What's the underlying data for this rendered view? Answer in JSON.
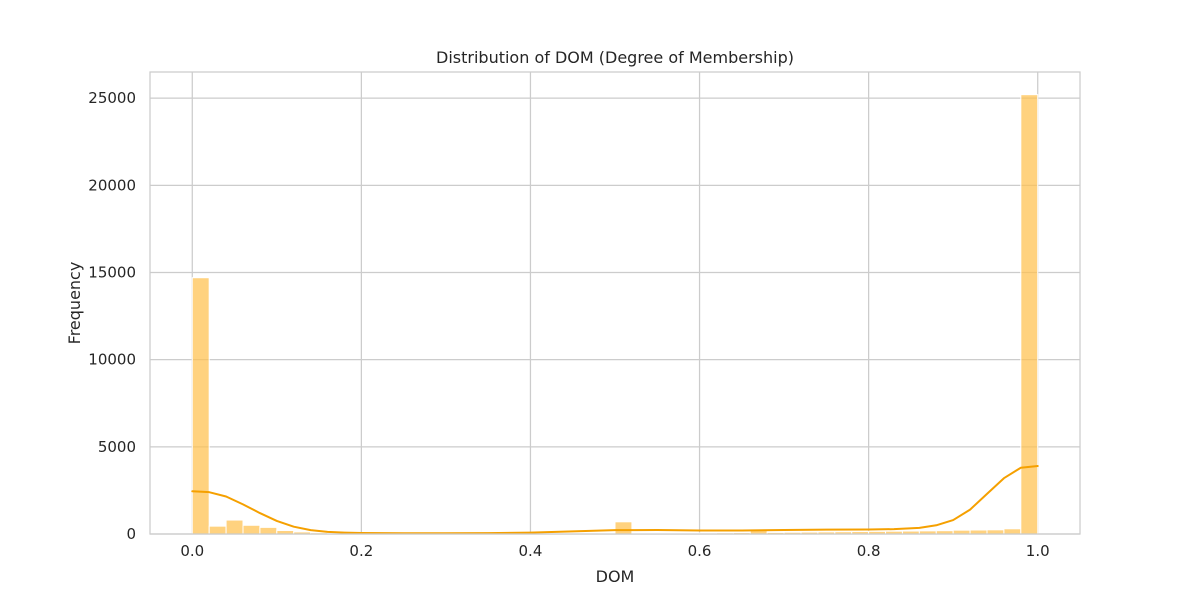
{
  "chart_data": {
    "type": "bar",
    "title": "Distribution of DOM (Degree of Membership)",
    "xlabel": "DOM",
    "ylabel": "Frequency",
    "xlim": [
      -0.05,
      1.05
    ],
    "ylim": [
      0,
      26500
    ],
    "xticks": [
      0.0,
      0.2,
      0.4,
      0.6,
      0.8,
      1.0
    ],
    "xtick_labels": [
      "0.0",
      "0.2",
      "0.4",
      "0.6",
      "0.8",
      "1.0"
    ],
    "yticks": [
      0,
      5000,
      10000,
      15000,
      20000,
      25000
    ],
    "ytick_labels": [
      "0",
      "5000",
      "10000",
      "15000",
      "20000",
      "25000"
    ],
    "grid": true,
    "bin_width": 0.02,
    "bins_start": [
      0.0,
      0.02,
      0.04,
      0.06,
      0.08,
      0.1,
      0.12,
      0.14,
      0.16,
      0.18,
      0.2,
      0.22,
      0.24,
      0.26,
      0.28,
      0.3,
      0.32,
      0.34,
      0.36,
      0.38,
      0.4,
      0.42,
      0.44,
      0.46,
      0.48,
      0.5,
      0.52,
      0.54,
      0.56,
      0.58,
      0.6,
      0.62,
      0.64,
      0.66,
      0.68,
      0.7,
      0.72,
      0.74,
      0.76,
      0.78,
      0.8,
      0.82,
      0.84,
      0.86,
      0.88,
      0.9,
      0.92,
      0.94,
      0.96,
      0.98
    ],
    "values": [
      14700,
      450,
      800,
      500,
      380,
      200,
      120,
      70,
      40,
      30,
      20,
      15,
      15,
      15,
      15,
      15,
      15,
      15,
      15,
      15,
      20,
      20,
      20,
      20,
      25,
      700,
      40,
      40,
      40,
      40,
      60,
      70,
      80,
      220,
      90,
      100,
      110,
      120,
      130,
      140,
      150,
      160,
      170,
      180,
      190,
      220,
      230,
      240,
      300,
      25200
    ],
    "kde": {
      "x": [
        0.0,
        0.02,
        0.04,
        0.06,
        0.08,
        0.1,
        0.12,
        0.14,
        0.16,
        0.18,
        0.2,
        0.25,
        0.3,
        0.35,
        0.4,
        0.45,
        0.5,
        0.55,
        0.6,
        0.65,
        0.7,
        0.75,
        0.8,
        0.83,
        0.86,
        0.88,
        0.9,
        0.92,
        0.94,
        0.96,
        0.98,
        1.0
      ],
      "y": [
        2450,
        2400,
        2150,
        1700,
        1200,
        750,
        420,
        220,
        120,
        80,
        60,
        40,
        40,
        50,
        80,
        150,
        220,
        230,
        200,
        200,
        230,
        250,
        260,
        280,
        350,
        500,
        800,
        1400,
        2300,
        3200,
        3800,
        3900
      ]
    },
    "colors": {
      "bar_fill": "#ffc04d",
      "bar_edge": "#ffffff",
      "kde_line": "#f5a000",
      "grid": "#cccccc",
      "axes_edge": "#cccccc",
      "text": "#262626"
    }
  }
}
